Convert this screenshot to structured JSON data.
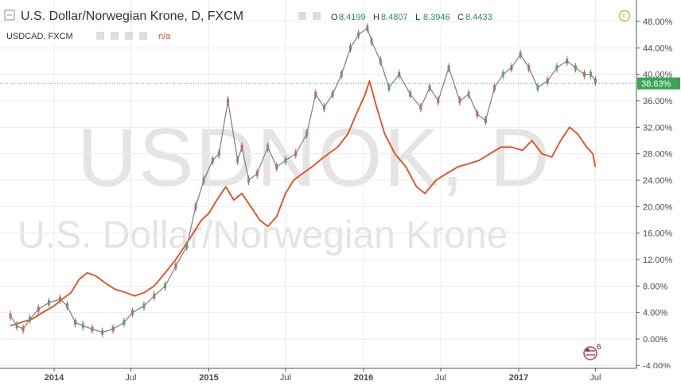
{
  "header": {
    "title": "U.S. Dollar/Norwegian Krone, D, FXCM",
    "ohlc": [
      {
        "label": "O",
        "value": "8.4199"
      },
      {
        "label": "H",
        "value": "8.4807"
      },
      {
        "label": "L",
        "value": "8.3946"
      },
      {
        "label": "C",
        "value": "8.4433"
      }
    ],
    "compare_symbol": "USDCAD, FXCM",
    "compare_value": "n/a"
  },
  "watermark": {
    "symbol": "USDNOK, D",
    "name": "U.S. Dollar/Norwegian Krone"
  },
  "current_value_label": "38.63%",
  "flag_count": "6",
  "colors": {
    "main_series": "#7d7d7d",
    "compare_series": "#f0461a",
    "price_tag": "#3ca558",
    "alert_icon": "#f39a1a"
  },
  "chart_data": {
    "type": "line",
    "xlabel": "",
    "ylabel": "",
    "y_unit": "percent",
    "ylim": [
      -4,
      50
    ],
    "y_ticks": [
      48,
      44,
      40,
      36,
      32,
      28,
      24,
      20,
      16,
      12,
      8,
      4,
      0,
      -4
    ],
    "y_tick_labels": [
      "48.00%",
      "44.00%",
      "40.00%",
      "36.00%",
      "32.00%",
      "28.00%",
      "24.00%",
      "20.00%",
      "16.00%",
      "12.00%",
      "8.00%",
      "4.00%",
      "0.00%",
      "-4.00%"
    ],
    "x_ticks": [
      {
        "date": "2014-01-01",
        "label": "2014",
        "bold": true
      },
      {
        "date": "2014-07-01",
        "label": "Jul",
        "bold": false
      },
      {
        "date": "2015-01-01",
        "label": "2015",
        "bold": true
      },
      {
        "date": "2015-07-01",
        "label": "Jul",
        "bold": false
      },
      {
        "date": "2016-01-01",
        "label": "2016",
        "bold": true
      },
      {
        "date": "2016-07-01",
        "label": "Jul",
        "bold": false
      },
      {
        "date": "2017-01-01",
        "label": "2017",
        "bold": true
      },
      {
        "date": "2017-07-01",
        "label": "Jul",
        "bold": false
      }
    ],
    "current_value": 38.63,
    "grid": true,
    "series": [
      {
        "style": "candles",
        "x": [
          "2013-09-20",
          "2013-10-05",
          "2013-10-20",
          "2013-11-05",
          "2013-11-25",
          "2013-12-20",
          "2014-01-15",
          "2014-02-01",
          "2014-02-20",
          "2014-03-10",
          "2014-04-01",
          "2014-04-25",
          "2014-05-20",
          "2014-06-15",
          "2014-07-05",
          "2014-08-01",
          "2014-08-25",
          "2014-09-20",
          "2014-10-15",
          "2014-11-10",
          "2014-12-01",
          "2014-12-20",
          "2015-01-10",
          "2015-01-25",
          "2015-02-15",
          "2015-03-10",
          "2015-03-20",
          "2015-04-05",
          "2015-04-25",
          "2015-05-20",
          "2015-06-10",
          "2015-07-01",
          "2015-07-25",
          "2015-08-20",
          "2015-09-10",
          "2015-09-30",
          "2015-10-20",
          "2015-11-10",
          "2015-12-01",
          "2015-12-20",
          "2016-01-10",
          "2016-01-20",
          "2016-02-10",
          "2016-03-01",
          "2016-03-25",
          "2016-04-20",
          "2016-05-15",
          "2016-06-05",
          "2016-06-25",
          "2016-07-20",
          "2016-08-15",
          "2016-09-05",
          "2016-09-25",
          "2016-10-15",
          "2016-11-05",
          "2016-11-25",
          "2016-12-15",
          "2017-01-05",
          "2017-01-25",
          "2017-02-15",
          "2017-03-10",
          "2017-04-01",
          "2017-04-25",
          "2017-05-15",
          "2017-06-05",
          "2017-06-20",
          "2017-07-01"
        ],
        "y": [
          3.5,
          2.0,
          1.5,
          3.0,
          4.5,
          5.5,
          6.0,
          5.0,
          2.5,
          2.0,
          1.5,
          1.0,
          1.5,
          2.5,
          4.0,
          5.0,
          6.5,
          8.0,
          11.0,
          14.0,
          20.0,
          24.0,
          27.0,
          28.0,
          36.0,
          27.0,
          29.0,
          24.0,
          25.0,
          29.0,
          26.0,
          27.0,
          28.0,
          31.0,
          37.0,
          35.0,
          37.0,
          40.0,
          44.0,
          46.0,
          47.0,
          45.0,
          42.0,
          38.0,
          40.0,
          37.0,
          35.0,
          38.0,
          36.0,
          41.0,
          36.0,
          37.0,
          34.0,
          33.0,
          38.0,
          40.0,
          41.0,
          43.0,
          41.0,
          38.0,
          39.0,
          41.0,
          42.0,
          41.0,
          40.0,
          40.0,
          39.0
        ]
      },
      {
        "style": "line",
        "x": [
          "2013-09-20",
          "2013-10-15",
          "2013-11-10",
          "2013-12-05",
          "2014-01-01",
          "2014-01-20",
          "2014-02-10",
          "2014-03-01",
          "2014-03-20",
          "2014-04-10",
          "2014-05-01",
          "2014-05-25",
          "2014-06-20",
          "2014-07-10",
          "2014-08-01",
          "2014-08-25",
          "2014-09-20",
          "2014-10-15",
          "2014-11-05",
          "2014-11-25",
          "2014-12-15",
          "2015-01-01",
          "2015-01-20",
          "2015-02-10",
          "2015-03-01",
          "2015-03-20",
          "2015-04-10",
          "2015-05-01",
          "2015-05-20",
          "2015-06-10",
          "2015-07-01",
          "2015-07-20",
          "2015-08-10",
          "2015-09-01",
          "2015-09-20",
          "2015-10-10",
          "2015-11-01",
          "2015-11-25",
          "2015-12-15",
          "2016-01-05",
          "2016-01-15",
          "2016-02-01",
          "2016-02-20",
          "2016-03-15",
          "2016-04-10",
          "2016-05-05",
          "2016-05-25",
          "2016-06-20",
          "2016-07-15",
          "2016-08-10",
          "2016-09-05",
          "2016-09-30",
          "2016-10-25",
          "2016-11-20",
          "2016-12-15",
          "2017-01-10",
          "2017-02-01",
          "2017-02-25",
          "2017-03-20",
          "2017-04-10",
          "2017-05-01",
          "2017-05-20",
          "2017-06-10",
          "2017-06-25",
          "2017-07-01"
        ],
        "y": [
          2.0,
          2.5,
          3.0,
          4.0,
          5.0,
          6.0,
          7.0,
          9.0,
          10.0,
          9.5,
          8.5,
          7.5,
          7.0,
          6.5,
          7.0,
          8.0,
          10.0,
          12.0,
          14.0,
          16.0,
          18.0,
          19.0,
          21.0,
          23.0,
          21.0,
          22.0,
          20.0,
          18.0,
          17.0,
          18.5,
          22.0,
          24.0,
          25.0,
          26.0,
          27.0,
          28.0,
          29.0,
          31.0,
          34.0,
          37.0,
          39.0,
          35.0,
          31.0,
          28.0,
          26.0,
          23.0,
          22.0,
          24.0,
          25.0,
          26.0,
          26.5,
          27.0,
          28.0,
          29.0,
          29.0,
          28.5,
          30.0,
          28.0,
          27.5,
          30.0,
          32.0,
          31.0,
          29.0,
          28.0,
          26.0
        ]
      }
    ]
  }
}
